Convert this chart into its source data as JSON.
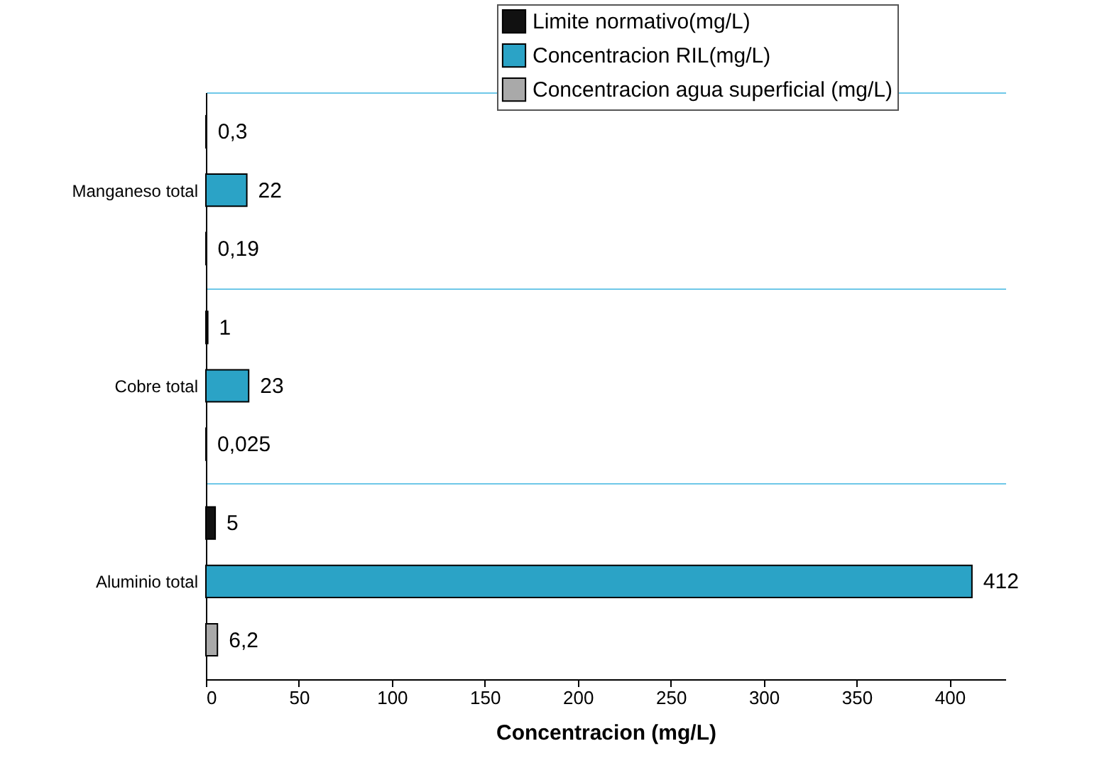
{
  "chart_data": {
    "type": "bar",
    "orientation": "horizontal",
    "xlabel": "Concentracion (mg/L)",
    "categories": [
      "Manganeso total",
      "Cobre total",
      "Aluminio total"
    ],
    "series": [
      {
        "name": "Limite normativo(mg/L)",
        "color": "#111111",
        "values": [
          0.3,
          1,
          5
        ],
        "value_labels": [
          "0,3",
          "1",
          "5"
        ]
      },
      {
        "name": "Concentracion RIL(mg/L)",
        "color": "#2ba3c6",
        "values": [
          22,
          23,
          412
        ],
        "value_labels": [
          "22",
          "23",
          "412"
        ]
      },
      {
        "name": "Concentracion agua superficial (mg/L)",
        "color": "#a9a9a9",
        "values": [
          0.19,
          0.025,
          6.2
        ],
        "value_labels": [
          "0,19",
          "0,025",
          "6,2"
        ]
      }
    ],
    "xlim": [
      0,
      430
    ],
    "xticks": [
      0,
      50,
      100,
      150,
      200,
      250,
      300,
      350,
      400
    ],
    "grid": "y",
    "legend": "top right"
  }
}
